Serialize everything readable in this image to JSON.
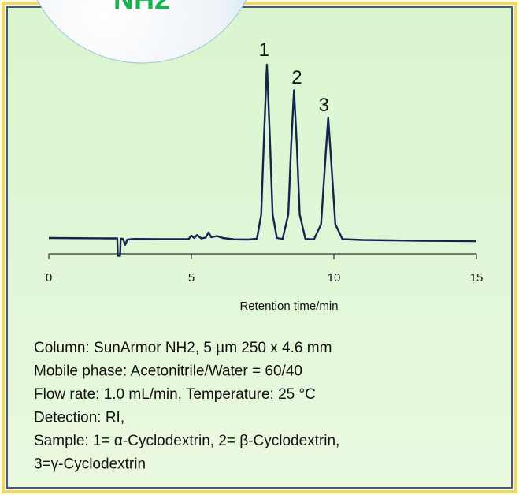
{
  "chart_data": {
    "type": "line",
    "badge": "NH2",
    "xlabel": "Retention time/min",
    "xlim": [
      0,
      15
    ],
    "xticks": [
      0,
      5,
      10,
      15
    ],
    "ylim": [
      0,
      100
    ],
    "color": "#13244f",
    "x": [
      0,
      1,
      2,
      2.4,
      2.42,
      2.5,
      2.52,
      2.6,
      2.68,
      2.75,
      3,
      4,
      4.9,
      5.0,
      5.1,
      5.2,
      5.35,
      5.5,
      5.6,
      5.7,
      5.9,
      6.1,
      6.5,
      7.0,
      7.3,
      7.45,
      7.55,
      7.65,
      7.75,
      7.85,
      8.0,
      8.2,
      8.4,
      8.5,
      8.6,
      8.7,
      8.8,
      9.0,
      9.3,
      9.55,
      9.7,
      9.8,
      9.9,
      10.05,
      10.3,
      11,
      12,
      13,
      14,
      15
    ],
    "values": [
      8.0,
      7.9,
      7.8,
      7.8,
      -1,
      -1,
      7.6,
      7.6,
      4.5,
      7.2,
      7.5,
      7.4,
      7.4,
      9.2,
      8.0,
      9.5,
      7.8,
      8.2,
      10.8,
      8.4,
      9.0,
      8.0,
      7.3,
      7.2,
      7.6,
      20,
      60,
      96,
      60,
      20,
      8.0,
      7.5,
      20,
      55,
      83,
      55,
      20,
      7.5,
      7.3,
      15,
      48,
      69,
      48,
      15,
      7.4,
      7.0,
      6.8,
      6.6,
      6.5,
      6.4
    ],
    "annotations": [
      {
        "text": "1",
        "x": 7.55,
        "y": 103
      },
      {
        "text": "2",
        "x": 8.7,
        "y": 89
      },
      {
        "text": "3",
        "x": 9.65,
        "y": 75
      }
    ],
    "notes": [
      "Column: SunArmor NH2, 5 µm 250 x 4.6 mm",
      "Mobile phase: Acetonitrile/Water = 60/40",
      "Flow rate: 1.0 mL/min, Temperature: 25 °C",
      "Detection: RI,",
      "Sample: 1= α-Cyclodextrin, 2= β-Cyclodextrin,",
      "3=γ-Cyclodextrin"
    ]
  }
}
